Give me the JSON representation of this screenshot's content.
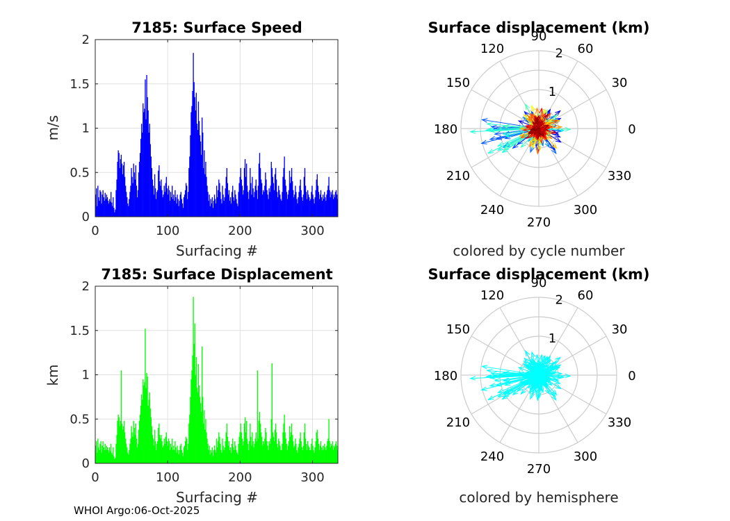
{
  "footer": "WHOI Argo:06-Oct-2025",
  "chart_data": [
    {
      "type": "bar",
      "title": "7185: Surface Speed",
      "xlabel": "Surfacing #",
      "ylabel": "m/s",
      "xlim": [
        0,
        335
      ],
      "ylim": [
        0,
        2
      ],
      "xticks": [
        0,
        100,
        200,
        300
      ],
      "yticks": [
        0,
        0.5,
        1,
        1.5,
        2
      ],
      "ytick_labels": [
        "0",
        "0.5",
        "1",
        "1.5",
        "2"
      ],
      "grid": true,
      "color": "#0000ff",
      "values": [
        0.25,
        0.32,
        0.12,
        0.35,
        0.22,
        0.18,
        0.3,
        0.28,
        0.15,
        0.25,
        0.3,
        0.22,
        0.18,
        0.27,
        0.2,
        0.25,
        0.22,
        0.18,
        0.15,
        0.2,
        0.17,
        0.28,
        0.16,
        0.12,
        0.22,
        0.1,
        0.05,
        0.08,
        0.3,
        0.42,
        0.62,
        0.75,
        0.72,
        0.55,
        0.65,
        0.7,
        0.6,
        0.48,
        0.58,
        0.62,
        0.45,
        0.35,
        0.28,
        0.22,
        0.15,
        0.12,
        0.2,
        0.28,
        0.35,
        0.55,
        0.45,
        0.38,
        0.6,
        0.5,
        0.42,
        0.58,
        0.35,
        0.22,
        0.3,
        0.5,
        0.62,
        0.72,
        0.88,
        1.05,
        0.95,
        1.28,
        1.18,
        1.22,
        1.55,
        1.1,
        1.6,
        1.35,
        1.2,
        0.95,
        1.05,
        0.82,
        0.68,
        0.55,
        0.42,
        0.35,
        0.25,
        0.48,
        0.32,
        0.2,
        0.28,
        0.3,
        0.52,
        0.58,
        0.4,
        0.35,
        0.42,
        0.3,
        0.22,
        0.25,
        0.35,
        0.28,
        0.38,
        0.45,
        0.32,
        0.25,
        0.35,
        0.3,
        0.18,
        0.28,
        0.22,
        0.35,
        0.2,
        0.25,
        0.18,
        0.3,
        0.22,
        0.15,
        0.25,
        0.2,
        0.12,
        0.18,
        0.25,
        0.28,
        0.2,
        0.15,
        0.1,
        0.22,
        0.25,
        0.3,
        0.38,
        0.35,
        0.2,
        0.28,
        0.55,
        0.68,
        0.92,
        1.18,
        1.25,
        1.42,
        1.85,
        1.52,
        1.35,
        1.2,
        1.4,
        1.05,
        0.98,
        1.3,
        1.08,
        0.92,
        0.85,
        0.7,
        1.12,
        0.95,
        0.55,
        0.75,
        0.48,
        0.62,
        0.45,
        0.35,
        0.28,
        0.18,
        0.25,
        0.12,
        0.2,
        0.15,
        0.22,
        0.1,
        0.18,
        0.25,
        0.2,
        0.15,
        0.35,
        0.22,
        0.3,
        0.42,
        0.38,
        0.28,
        0.2,
        0.15,
        0.35,
        0.25,
        0.18,
        0.22,
        0.32,
        0.45,
        0.55,
        0.38,
        0.25,
        0.3,
        0.18,
        0.22,
        0.15,
        0.28,
        0.35,
        0.22,
        0.18,
        0.3,
        0.25,
        0.2,
        0.15,
        0.12,
        0.28,
        0.38,
        0.45,
        0.55,
        0.42,
        0.35,
        0.25,
        0.3,
        0.55,
        0.65,
        0.45,
        0.6,
        0.35,
        0.28,
        0.2,
        0.3,
        0.55,
        0.38,
        0.25,
        0.45,
        0.32,
        0.22,
        0.28,
        0.35,
        0.42,
        0.3,
        0.2,
        0.35,
        0.6,
        0.72,
        0.55,
        0.42,
        0.38,
        0.25,
        0.3,
        0.28,
        0.35,
        0.5,
        0.42,
        0.3,
        0.25,
        0.2,
        0.32,
        0.28,
        0.35,
        0.62,
        0.55,
        0.45,
        0.38,
        0.3,
        0.48,
        0.55,
        0.42,
        0.28,
        0.22,
        0.35,
        0.3,
        0.25,
        0.2,
        0.18,
        0.28,
        0.45,
        0.55,
        0.68,
        0.42,
        0.35,
        0.28,
        0.2,
        0.25,
        0.3,
        0.52,
        0.38,
        0.45,
        0.55,
        0.4,
        0.3,
        0.22,
        0.25,
        0.35,
        0.28,
        0.2,
        0.15,
        0.22,
        0.28,
        0.35,
        0.42,
        0.3,
        0.22,
        0.18,
        0.25,
        0.45,
        0.55,
        0.35,
        0.28,
        0.2,
        0.3,
        0.25,
        0.22,
        0.18,
        0.2,
        0.28,
        0.35,
        0.25,
        0.2,
        0.15,
        0.22,
        0.3,
        0.42,
        0.48,
        0.35,
        0.28,
        0.2,
        0.25,
        0.3,
        0.22,
        0.18,
        0.25,
        0.2,
        0.28,
        0.22,
        0.18,
        0.25,
        0.3,
        0.35,
        0.45,
        0.3,
        0.22,
        0.28,
        0.25,
        0.3,
        0.2,
        0.25,
        0.22,
        0.28,
        0.3,
        0.25,
        0.2
      ]
    },
    {
      "type": "polar-arrows",
      "title": "Surface displacement (km)",
      "caption": "colored by cycle number",
      "angle_labels": [
        "0",
        "30",
        "60",
        "90",
        "120",
        "150",
        "180",
        "210",
        "240",
        "270",
        "300",
        "330"
      ],
      "radial_max": 2,
      "radial_ticks": [
        1,
        2
      ],
      "coloring": "cycle",
      "colormap": "jet"
    },
    {
      "type": "bar",
      "title": "7185: Surface Displacement",
      "xlabel": "Surfacing #",
      "ylabel": "km",
      "xlim": [
        0,
        335
      ],
      "ylim": [
        0,
        2
      ],
      "xticks": [
        0,
        100,
        200,
        300
      ],
      "yticks": [
        0,
        0.5,
        1,
        1.5,
        2
      ],
      "ytick_labels": [
        "0",
        "0.5",
        "1",
        "1.5",
        "2"
      ],
      "grid": true,
      "color": "#00ff00",
      "values": [
        0.2,
        0.25,
        0.12,
        0.28,
        0.18,
        0.15,
        0.22,
        0.25,
        0.12,
        0.2,
        0.25,
        0.18,
        0.15,
        0.22,
        0.15,
        0.2,
        0.18,
        0.15,
        0.12,
        0.18,
        0.14,
        0.22,
        0.12,
        0.1,
        0.18,
        0.08,
        0.05,
        0.06,
        0.22,
        0.32,
        0.48,
        0.55,
        0.52,
        0.42,
        0.48,
        1.05,
        0.45,
        0.38,
        0.42,
        0.48,
        0.35,
        0.28,
        0.22,
        0.18,
        0.12,
        0.1,
        0.15,
        0.22,
        0.28,
        0.42,
        0.35,
        0.3,
        0.48,
        0.4,
        0.32,
        0.45,
        0.28,
        0.18,
        0.22,
        0.38,
        0.48,
        0.55,
        0.65,
        0.78,
        0.72,
        0.95,
        0.88,
        0.92,
        1.52,
        0.85,
        1.02,
        0.98,
        0.65,
        0.72,
        0.8,
        0.62,
        0.52,
        0.42,
        0.32,
        0.28,
        0.2,
        0.38,
        0.25,
        0.15,
        0.22,
        0.25,
        0.4,
        0.45,
        0.32,
        0.28,
        0.32,
        0.25,
        0.18,
        0.2,
        0.28,
        0.22,
        0.3,
        0.35,
        0.25,
        0.2,
        0.28,
        0.25,
        0.15,
        0.22,
        0.18,
        0.28,
        0.15,
        0.2,
        0.15,
        0.25,
        0.18,
        0.12,
        0.2,
        0.15,
        0.1,
        0.15,
        0.2,
        0.22,
        0.15,
        0.12,
        0.08,
        0.18,
        0.2,
        0.25,
        0.3,
        0.28,
        0.15,
        0.22,
        0.45,
        0.55,
        0.75,
        0.95,
        1.05,
        1.22,
        1.88,
        1.35,
        1.58,
        1.0,
        1.2,
        0.85,
        0.8,
        1.12,
        0.88,
        0.75,
        0.68,
        0.58,
        1.32,
        0.75,
        0.45,
        0.6,
        0.38,
        0.5,
        0.35,
        0.28,
        0.22,
        0.15,
        0.2,
        0.1,
        0.15,
        0.12,
        0.18,
        0.08,
        0.15,
        0.2,
        0.15,
        0.12,
        0.28,
        0.18,
        0.25,
        0.35,
        0.3,
        0.22,
        0.15,
        0.12,
        0.28,
        0.2,
        0.15,
        0.18,
        0.25,
        0.35,
        0.45,
        0.3,
        0.2,
        0.25,
        0.15,
        0.18,
        0.12,
        0.22,
        0.28,
        0.18,
        0.15,
        0.25,
        0.2,
        0.15,
        0.12,
        0.1,
        0.22,
        0.3,
        0.35,
        0.45,
        0.35,
        0.28,
        0.2,
        0.25,
        0.45,
        0.52,
        0.35,
        0.48,
        0.28,
        0.22,
        0.15,
        0.25,
        0.45,
        0.3,
        0.2,
        0.35,
        0.25,
        0.18,
        0.22,
        0.28,
        0.35,
        0.25,
        1.05,
        0.28,
        0.48,
        0.58,
        0.45,
        0.35,
        0.3,
        0.2,
        0.25,
        0.22,
        0.28,
        0.4,
        0.35,
        0.25,
        0.2,
        0.15,
        0.25,
        0.22,
        0.28,
        0.5,
        1.13,
        0.35,
        0.3,
        0.25,
        0.38,
        0.45,
        0.35,
        0.22,
        0.18,
        0.28,
        0.25,
        0.2,
        0.15,
        0.15,
        0.22,
        0.35,
        0.45,
        0.55,
        0.35,
        0.28,
        0.22,
        0.15,
        0.2,
        0.25,
        0.42,
        0.3,
        0.35,
        0.45,
        0.32,
        0.25,
        0.18,
        0.2,
        0.28,
        0.22,
        0.15,
        0.12,
        0.18,
        0.22,
        0.28,
        0.35,
        0.25,
        0.18,
        0.15,
        0.2,
        0.35,
        0.45,
        0.28,
        0.22,
        0.15,
        0.25,
        0.2,
        0.18,
        0.15,
        0.15,
        0.22,
        0.28,
        0.2,
        0.15,
        0.12,
        0.18,
        0.25,
        0.35,
        0.38,
        0.28,
        0.22,
        0.15,
        0.2,
        0.25,
        0.18,
        0.15,
        0.2,
        0.15,
        0.22,
        0.18,
        0.15,
        0.2,
        0.25,
        0.28,
        0.5,
        0.25,
        0.18,
        0.22,
        0.2,
        0.25,
        0.15,
        0.2,
        0.18,
        0.22,
        0.25,
        0.2,
        0.15
      ]
    },
    {
      "type": "polar-arrows",
      "title": "Surface displacement (km)",
      "caption": "colored by hemisphere",
      "angle_labels": [
        "0",
        "30",
        "60",
        "90",
        "120",
        "150",
        "180",
        "210",
        "240",
        "270",
        "300",
        "330"
      ],
      "radial_max": 2,
      "radial_ticks": [
        1,
        2
      ],
      "coloring": "hemisphere",
      "color": "#00ffff"
    }
  ]
}
